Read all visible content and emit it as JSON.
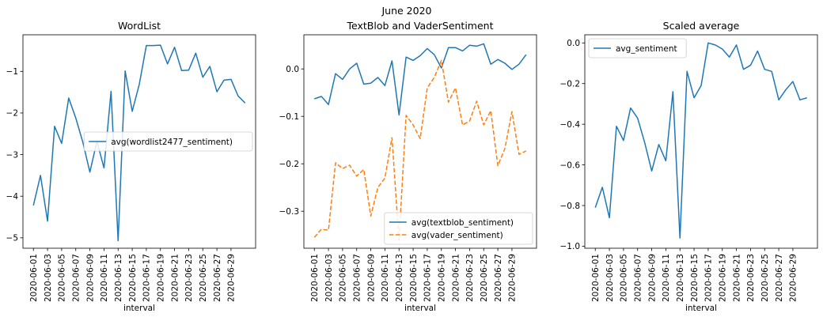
{
  "figure": {
    "suptitle": "June 2020"
  },
  "colors": {
    "blue": "#1f77b4",
    "orange": "#ff7f0e",
    "axis": "#000000",
    "legend_border": "#cccccc"
  },
  "chart_data": [
    {
      "type": "line",
      "title": "WordList",
      "xlabel": "interval",
      "ylabel": "",
      "x": [
        "2020-06-01",
        "2020-06-02",
        "2020-06-03",
        "2020-06-04",
        "2020-06-05",
        "2020-06-06",
        "2020-06-07",
        "2020-06-08",
        "2020-06-09",
        "2020-06-10",
        "2020-06-11",
        "2020-06-12",
        "2020-06-13",
        "2020-06-14",
        "2020-06-15",
        "2020-06-16",
        "2020-06-17",
        "2020-06-18",
        "2020-06-19",
        "2020-06-20",
        "2020-06-21",
        "2020-06-22",
        "2020-06-23",
        "2020-06-24",
        "2020-06-25",
        "2020-06-26",
        "2020-06-27",
        "2020-06-28",
        "2020-06-29",
        "2020-06-30",
        "2020-07-01"
      ],
      "xticks": [
        "2020-06-01",
        "2020-06-03",
        "2020-06-05",
        "2020-06-07",
        "2020-06-09",
        "2020-06-11",
        "2020-06-13",
        "2020-06-15",
        "2020-06-17",
        "2020-06-19",
        "2020-06-21",
        "2020-06-23",
        "2020-06-25",
        "2020-06-27",
        "2020-06-29"
      ],
      "yticks": [
        -5,
        -4,
        -3,
        -2,
        -1
      ],
      "ytick_labels": [
        "−5",
        "−4",
        "−3",
        "−2",
        "−1"
      ],
      "ylim": [
        -5.25,
        -0.12
      ],
      "grid": false,
      "legend_position": "center-right",
      "series": [
        {
          "name": "avg(wordlist2477_sentiment)",
          "color": "#1f77b4",
          "dash": "solid",
          "values": [
            -4.22,
            -3.5,
            -4.6,
            -2.32,
            -2.73,
            -1.64,
            -2.12,
            -2.7,
            -3.42,
            -2.68,
            -3.32,
            -1.48,
            -5.07,
            -0.99,
            -1.96,
            -1.31,
            -0.38,
            -0.38,
            -0.37,
            -0.82,
            -0.42,
            -0.98,
            -0.97,
            -0.56,
            -1.14,
            -0.88,
            -1.49,
            -1.21,
            -1.19,
            -1.59,
            -1.76
          ]
        }
      ]
    },
    {
      "type": "line",
      "title": "TextBlob and VaderSentiment",
      "xlabel": "interval",
      "ylabel": "",
      "x": [
        "2020-06-01",
        "2020-06-02",
        "2020-06-03",
        "2020-06-04",
        "2020-06-05",
        "2020-06-06",
        "2020-06-07",
        "2020-06-08",
        "2020-06-09",
        "2020-06-10",
        "2020-06-11",
        "2020-06-12",
        "2020-06-13",
        "2020-06-14",
        "2020-06-15",
        "2020-06-16",
        "2020-06-17",
        "2020-06-18",
        "2020-06-19",
        "2020-06-20",
        "2020-06-21",
        "2020-06-22",
        "2020-06-23",
        "2020-06-24",
        "2020-06-25",
        "2020-06-26",
        "2020-06-27",
        "2020-06-28",
        "2020-06-29",
        "2020-06-30",
        "2020-07-01"
      ],
      "xticks": [
        "2020-06-01",
        "2020-06-03",
        "2020-06-05",
        "2020-06-07",
        "2020-06-09",
        "2020-06-11",
        "2020-06-13",
        "2020-06-15",
        "2020-06-17",
        "2020-06-19",
        "2020-06-21",
        "2020-06-23",
        "2020-06-25",
        "2020-06-27",
        "2020-06-29"
      ],
      "yticks": [
        -0.3,
        -0.2,
        -0.1,
        0.0
      ],
      "ytick_labels": [
        "−0.3",
        "−0.2",
        "−0.1",
        "0.0"
      ],
      "ylim": [
        -0.378,
        0.072
      ],
      "grid": false,
      "legend_position": "lower-right",
      "series": [
        {
          "name": "avg(textblob_sentiment)",
          "color": "#1f77b4",
          "dash": "solid",
          "values": [
            -0.063,
            -0.058,
            -0.075,
            -0.01,
            -0.022,
            0.0,
            0.012,
            -0.032,
            -0.03,
            -0.018,
            -0.035,
            0.017,
            -0.097,
            0.025,
            0.018,
            0.028,
            0.043,
            0.03,
            0.002,
            0.045,
            0.045,
            0.038,
            0.05,
            0.048,
            0.053,
            0.01,
            0.02,
            0.012,
            -0.001,
            0.01,
            0.03
          ]
        },
        {
          "name": "avg(vader_sentiment)",
          "color": "#ff7f0e",
          "dash": "dashed",
          "values": [
            -0.355,
            -0.338,
            -0.34,
            -0.198,
            -0.21,
            -0.203,
            -0.226,
            -0.212,
            -0.31,
            -0.25,
            -0.23,
            -0.145,
            -0.362,
            -0.098,
            -0.118,
            -0.147,
            -0.04,
            -0.018,
            0.018,
            -0.07,
            -0.04,
            -0.118,
            -0.11,
            -0.068,
            -0.118,
            -0.088,
            -0.204,
            -0.168,
            -0.09,
            -0.18,
            -0.173
          ]
        }
      ]
    },
    {
      "type": "line",
      "title": "Scaled average",
      "xlabel": "interval",
      "ylabel": "",
      "x": [
        "2020-06-01",
        "2020-06-02",
        "2020-06-03",
        "2020-06-04",
        "2020-06-05",
        "2020-06-06",
        "2020-06-07",
        "2020-06-08",
        "2020-06-09",
        "2020-06-10",
        "2020-06-11",
        "2020-06-12",
        "2020-06-13",
        "2020-06-14",
        "2020-06-15",
        "2020-06-16",
        "2020-06-17",
        "2020-06-18",
        "2020-06-19",
        "2020-06-20",
        "2020-06-21",
        "2020-06-22",
        "2020-06-23",
        "2020-06-24",
        "2020-06-25",
        "2020-06-26",
        "2020-06-27",
        "2020-06-28",
        "2020-06-29",
        "2020-06-30",
        "2020-07-01"
      ],
      "xticks": [
        "2020-06-01",
        "2020-06-03",
        "2020-06-05",
        "2020-06-07",
        "2020-06-09",
        "2020-06-11",
        "2020-06-13",
        "2020-06-15",
        "2020-06-17",
        "2020-06-19",
        "2020-06-21",
        "2020-06-23",
        "2020-06-25",
        "2020-06-27",
        "2020-06-29"
      ],
      "yticks": [
        -1.0,
        -0.8,
        -0.6,
        -0.4,
        -0.2,
        0.0
      ],
      "ytick_labels": [
        "−1.0",
        "−0.8",
        "−0.6",
        "−0.4",
        "−0.2",
        "0.0"
      ],
      "ylim": [
        -1.01,
        0.04
      ],
      "grid": false,
      "legend_position": "upper-left",
      "series": [
        {
          "name": "avg_sentiment",
          "color": "#1f77b4",
          "dash": "solid",
          "values": [
            -0.81,
            -0.71,
            -0.86,
            -0.41,
            -0.48,
            -0.32,
            -0.37,
            -0.49,
            -0.63,
            -0.5,
            -0.58,
            -0.24,
            -0.96,
            -0.14,
            -0.27,
            -0.21,
            0.0,
            -0.01,
            -0.03,
            -0.07,
            -0.01,
            -0.13,
            -0.11,
            -0.04,
            -0.13,
            -0.14,
            -0.28,
            -0.23,
            -0.19,
            -0.28,
            -0.27
          ]
        }
      ]
    }
  ]
}
